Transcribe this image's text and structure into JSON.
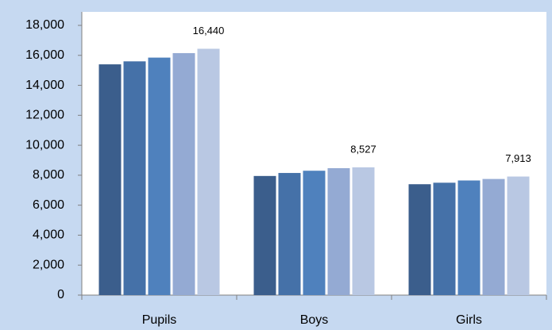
{
  "chart_data": {
    "type": "bar",
    "categories": [
      "Pupils",
      "Boys",
      "Girls"
    ],
    "series": [
      {
        "color": "#3b5e8c",
        "values": [
          15400,
          7950,
          7400
        ]
      },
      {
        "color": "#4571a8",
        "values": [
          15600,
          8150,
          7500
        ]
      },
      {
        "color": "#4f81bd",
        "values": [
          15850,
          8300,
          7650
        ]
      },
      {
        "color": "#94aad3",
        "values": [
          16150,
          8470,
          7750
        ]
      },
      {
        "color": "#b9c8e3",
        "values": [
          16440,
          8527,
          7913
        ],
        "value_labels": [
          "16,440",
          "8,527",
          "7,913"
        ]
      }
    ],
    "ylim": [
      0,
      18000
    ],
    "yticks": [
      0,
      {
        "value": 2000,
        "label": "2,000"
      },
      {
        "value": 4000,
        "label": "4,000"
      },
      {
        "value": 6000,
        "label": "6,000"
      },
      {
        "value": 8000,
        "label": "8,000"
      },
      {
        "value": 10000,
        "label": "10,000"
      },
      {
        "value": 12000,
        "label": "12,000"
      },
      {
        "value": 14000,
        "label": "14,000"
      },
      {
        "value": 16000,
        "label": "16,000"
      },
      {
        "value": 18000,
        "label": "18,000"
      }
    ],
    "grid": false
  }
}
